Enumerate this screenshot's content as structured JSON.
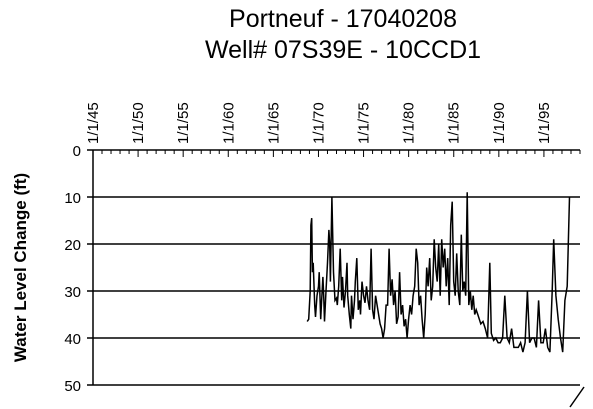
{
  "chart_data": {
    "type": "line",
    "title": "Portneuf - 17040208",
    "subtitle": "Well# 07S39E - 10CCD1",
    "ylabel": "Water Level Change (ft)",
    "xlabel": "",
    "x_axis": "date, top",
    "x_ticks": [
      "1/1/45",
      "1/1/50",
      "1/1/55",
      "1/1/60",
      "1/1/65",
      "1/1/70",
      "1/1/75",
      "1/1/80",
      "1/1/85",
      "1/1/90",
      "1/1/95"
    ],
    "y_ticks": [
      "0",
      "10",
      "20",
      "30",
      "40",
      "50"
    ],
    "ylim": [
      0,
      50
    ],
    "y_inverted": true,
    "grid": "horizontal",
    "xlim": [
      "1945-01-01",
      "1999-01-01"
    ],
    "series": [
      {
        "points": [
          [
            "1968-10-01",
            36.5
          ],
          [
            "1968-12-01",
            36
          ],
          [
            "1969-02-01",
            30
          ],
          [
            "1969-03-01",
            16
          ],
          [
            "1969-04-01",
            14.5
          ],
          [
            "1969-05-01",
            26
          ],
          [
            "1969-06-01",
            24
          ],
          [
            "1969-08-01",
            33
          ],
          [
            "1969-09-01",
            35.5
          ],
          [
            "1969-11-01",
            31
          ],
          [
            "1970-01-01",
            29
          ],
          [
            "1970-02-01",
            26
          ],
          [
            "1970-04-01",
            36
          ],
          [
            "1970-05-01",
            33
          ],
          [
            "1970-07-01",
            27
          ],
          [
            "1970-08-01",
            31
          ],
          [
            "1970-09-01",
            36.5
          ],
          [
            "1970-11-01",
            30
          ],
          [
            "1971-01-01",
            24
          ],
          [
            "1971-03-01",
            17
          ],
          [
            "1971-04-01",
            20
          ],
          [
            "1971-05-01",
            28
          ],
          [
            "1971-07-01",
            10
          ],
          [
            "1971-09-01",
            26
          ],
          [
            "1971-11-01",
            32
          ],
          [
            "1972-01-01",
            31.5
          ],
          [
            "1972-02-01",
            33
          ],
          [
            "1972-04-01",
            29
          ],
          [
            "1972-06-01",
            21
          ],
          [
            "1972-08-01",
            32
          ],
          [
            "1972-09-01",
            27
          ],
          [
            "1972-11-01",
            33.5
          ],
          [
            "1973-01-01",
            30
          ],
          [
            "1973-03-01",
            24
          ],
          [
            "1973-04-01",
            31
          ],
          [
            "1973-06-01",
            35
          ],
          [
            "1973-08-01",
            38
          ],
          [
            "1973-09-01",
            31
          ],
          [
            "1973-11-01",
            36
          ],
          [
            "1974-01-01",
            32
          ],
          [
            "1974-02-01",
            28
          ],
          [
            "1974-04-01",
            23
          ],
          [
            "1974-06-01",
            34
          ],
          [
            "1974-08-01",
            32
          ],
          [
            "1974-09-01",
            35
          ],
          [
            "1974-11-01",
            28
          ],
          [
            "1975-01-01",
            31
          ],
          [
            "1975-03-01",
            32.5
          ],
          [
            "1975-05-01",
            29
          ],
          [
            "1975-07-01",
            32
          ],
          [
            "1975-09-01",
            34
          ],
          [
            "1975-11-01",
            21
          ],
          [
            "1976-01-01",
            34
          ],
          [
            "1976-03-01",
            36
          ],
          [
            "1976-05-01",
            31
          ],
          [
            "1976-07-01",
            33
          ],
          [
            "1976-09-01",
            35
          ],
          [
            "1976-11-01",
            37
          ],
          [
            "1977-01-01",
            38
          ],
          [
            "1977-03-01",
            40
          ],
          [
            "1977-05-01",
            38
          ],
          [
            "1977-07-01",
            33
          ],
          [
            "1977-09-01",
            33
          ],
          [
            "1977-11-01",
            21
          ],
          [
            "1978-01-01",
            31
          ],
          [
            "1978-03-01",
            27.5
          ],
          [
            "1978-05-01",
            33
          ],
          [
            "1978-07-01",
            30
          ],
          [
            "1978-09-01",
            37
          ],
          [
            "1978-11-01",
            35.5
          ],
          [
            "1979-01-01",
            26
          ],
          [
            "1979-03-01",
            35
          ],
          [
            "1979-05-01",
            33
          ],
          [
            "1979-07-01",
            37.5
          ],
          [
            "1979-09-01",
            36
          ],
          [
            "1979-11-01",
            40
          ],
          [
            "1980-01-01",
            36
          ],
          [
            "1980-03-01",
            33
          ],
          [
            "1980-05-01",
            35
          ],
          [
            "1980-07-01",
            31
          ],
          [
            "1980-09-01",
            29
          ],
          [
            "1980-11-01",
            21
          ],
          [
            "1981-01-01",
            24
          ],
          [
            "1981-03-01",
            33
          ],
          [
            "1981-05-01",
            31
          ],
          [
            "1981-07-01",
            36
          ],
          [
            "1981-09-01",
            40
          ],
          [
            "1981-11-01",
            35
          ],
          [
            "1982-01-01",
            25
          ],
          [
            "1982-03-01",
            29
          ],
          [
            "1982-05-01",
            23
          ],
          [
            "1982-07-01",
            32
          ],
          [
            "1982-09-01",
            29
          ],
          [
            "1982-11-01",
            19
          ],
          [
            "1983-01-01",
            25
          ],
          [
            "1983-03-01",
            28
          ],
          [
            "1983-05-01",
            20
          ],
          [
            "1983-07-01",
            31
          ],
          [
            "1983-09-01",
            19
          ],
          [
            "1983-11-01",
            25
          ],
          [
            "1984-01-01",
            21
          ],
          [
            "1984-03-01",
            29
          ],
          [
            "1984-05-01",
            23
          ],
          [
            "1984-07-01",
            33
          ],
          [
            "1984-09-01",
            16
          ],
          [
            "1984-11-01",
            11
          ],
          [
            "1985-01-01",
            28
          ],
          [
            "1985-03-01",
            31
          ],
          [
            "1985-05-01",
            22
          ],
          [
            "1985-07-01",
            30
          ],
          [
            "1985-09-01",
            33
          ],
          [
            "1985-11-01",
            18
          ],
          [
            "1986-01-01",
            30
          ],
          [
            "1986-03-01",
            28
          ],
          [
            "1986-05-01",
            31
          ],
          [
            "1986-07-01",
            9
          ],
          [
            "1986-09-01",
            33
          ],
          [
            "1986-11-01",
            30
          ],
          [
            "1987-01-01",
            34
          ],
          [
            "1987-03-01",
            31
          ],
          [
            "1987-05-01",
            35
          ],
          [
            "1987-07-01",
            34
          ],
          [
            "1987-09-01",
            35
          ],
          [
            "1987-11-01",
            36
          ],
          [
            "1988-01-01",
            37
          ],
          [
            "1988-04-01",
            36.5
          ],
          [
            "1988-07-01",
            38
          ],
          [
            "1988-10-01",
            40
          ],
          [
            "1989-01-01",
            24
          ],
          [
            "1989-03-01",
            39
          ],
          [
            "1989-06-01",
            40.5
          ],
          [
            "1989-09-01",
            40
          ],
          [
            "1989-12-01",
            41
          ],
          [
            "1990-03-01",
            41
          ],
          [
            "1990-06-01",
            40
          ],
          [
            "1990-09-01",
            31
          ],
          [
            "1990-12-01",
            40
          ],
          [
            "1991-03-01",
            41
          ],
          [
            "1991-06-01",
            38
          ],
          [
            "1991-09-01",
            42
          ],
          [
            "1991-12-01",
            42
          ],
          [
            "1992-03-01",
            42
          ],
          [
            "1992-06-01",
            41
          ],
          [
            "1992-09-01",
            43
          ],
          [
            "1992-12-01",
            41
          ],
          [
            "1993-03-01",
            30
          ],
          [
            "1993-06-01",
            41
          ],
          [
            "1993-09-01",
            40
          ],
          [
            "1993-12-01",
            40
          ],
          [
            "1994-03-01",
            42
          ],
          [
            "1994-06-01",
            32
          ],
          [
            "1994-09-01",
            41
          ],
          [
            "1994-12-01",
            41
          ],
          [
            "1995-03-01",
            38
          ],
          [
            "1995-06-01",
            42
          ],
          [
            "1995-09-01",
            43
          ],
          [
            "1995-12-01",
            30
          ],
          [
            "1996-02-01",
            19
          ],
          [
            "1996-05-01",
            31
          ],
          [
            "1996-08-01",
            36
          ],
          [
            "1996-11-01",
            40
          ],
          [
            "1997-02-01",
            43
          ],
          [
            "1997-05-01",
            32
          ],
          [
            "1997-08-01",
            29
          ],
          [
            "1997-11-01",
            10
          ]
        ]
      }
    ]
  }
}
